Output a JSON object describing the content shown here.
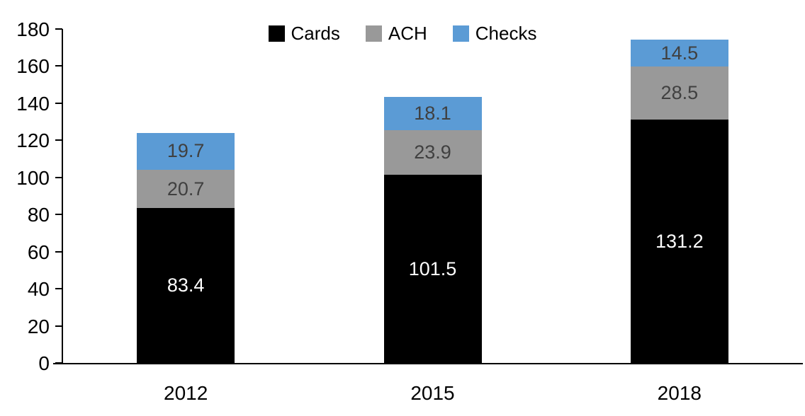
{
  "chart_data": {
    "type": "bar",
    "stacked": true,
    "title": "",
    "xlabel": "",
    "ylabel": "",
    "categories": [
      "2012",
      "2015",
      "2018"
    ],
    "series": [
      {
        "name": "Cards",
        "color": "#000000",
        "label_color": "#ffffff",
        "values": [
          83.4,
          101.5,
          131.2
        ]
      },
      {
        "name": "ACH",
        "color": "#999999",
        "label_color": "#404040",
        "values": [
          20.7,
          23.9,
          28.5
        ]
      },
      {
        "name": "Checks",
        "color": "#5b9bd5",
        "label_color": "#404040",
        "values": [
          19.7,
          18.1,
          14.5
        ]
      }
    ],
    "ylim": [
      0,
      180
    ],
    "yticks": [
      0,
      20,
      40,
      60,
      80,
      100,
      120,
      140,
      160,
      180
    ],
    "legend_position": "top-center",
    "grid": false,
    "axis_color": "#000000"
  }
}
